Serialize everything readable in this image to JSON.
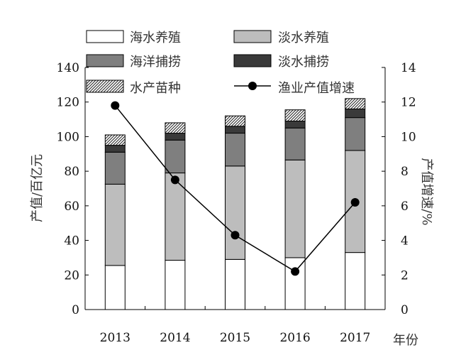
{
  "chart_data": {
    "type": "bar",
    "stacked": true,
    "categories": [
      "2013",
      "2014",
      "2015",
      "2016",
      "2017"
    ],
    "xlabel": "年份",
    "ylabel": "产值/百亿元",
    "y2label": "产值增速/%",
    "ylim": [
      0,
      140
    ],
    "y2lim": [
      0,
      14
    ],
    "yticks": [
      0,
      20,
      40,
      60,
      80,
      100,
      120,
      140
    ],
    "y2ticks": [
      0,
      2,
      4,
      6,
      8,
      10,
      12,
      14
    ],
    "grid": false,
    "legend_position": "top",
    "series": [
      {
        "name": "海水养殖",
        "values": [
          25.5,
          28.5,
          29,
          30,
          33
        ],
        "color": "#ffffff",
        "pattern": "none"
      },
      {
        "name": "淡水养殖",
        "values": [
          47,
          50.5,
          54,
          56.5,
          59
        ],
        "color": "#bdbdbd",
        "pattern": "none"
      },
      {
        "name": "海洋捕捞",
        "values": [
          18.5,
          19,
          19,
          18.5,
          19
        ],
        "color": "#7f7f7f",
        "pattern": "none"
      },
      {
        "name": "淡水捕捞",
        "values": [
          4,
          4,
          4,
          4,
          5
        ],
        "color": "#3a3a3a",
        "pattern": "none"
      },
      {
        "name": "水产苗种",
        "values": [
          6,
          6,
          6,
          6.5,
          6
        ],
        "color": "#ffffff",
        "pattern": "hatch"
      }
    ],
    "line_series": [
      {
        "name": "渔业产值增速",
        "axis": "right",
        "values": [
          11.8,
          7.5,
          4.3,
          2.2,
          6.2
        ],
        "color": "#000000"
      }
    ]
  }
}
